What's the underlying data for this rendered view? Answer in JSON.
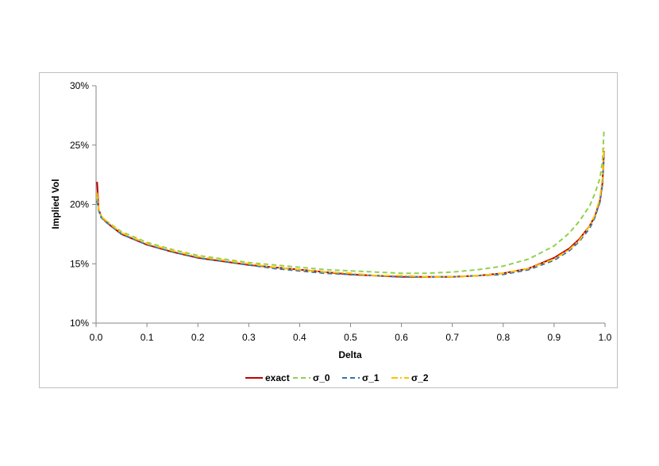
{
  "chart_data": {
    "type": "line",
    "title": "",
    "xlabel": "Delta",
    "ylabel": "Implied Vol",
    "xlim": [
      0.0,
      1.0
    ],
    "ylim": [
      0.1,
      0.3
    ],
    "x_ticks": [
      0.0,
      0.1,
      0.2,
      0.3,
      0.4,
      0.5,
      0.6,
      0.7,
      0.8,
      0.9,
      1.0
    ],
    "x_tick_labels": [
      "0.0",
      "0.1",
      "0.2",
      "0.3",
      "0.4",
      "0.5",
      "0.6",
      "0.7",
      "0.8",
      "0.9",
      "1.0"
    ],
    "y_ticks": [
      0.1,
      0.15,
      0.2,
      0.25,
      0.3
    ],
    "y_tick_labels": [
      "10%",
      "15%",
      "20%",
      "25%",
      "30%"
    ],
    "grid": false,
    "legend_position": "bottom",
    "series": [
      {
        "name": "exact",
        "color": "#c00000",
        "dash": "solid",
        "x": [
          0.002,
          0.005,
          0.01,
          0.02,
          0.05,
          0.1,
          0.15,
          0.2,
          0.25,
          0.3,
          0.35,
          0.4,
          0.45,
          0.5,
          0.55,
          0.6,
          0.65,
          0.7,
          0.75,
          0.8,
          0.85,
          0.9,
          0.93,
          0.95,
          0.97,
          0.98,
          0.99,
          0.995,
          0.998
        ],
        "y": [
          0.219,
          0.196,
          0.19,
          0.185,
          0.175,
          0.166,
          0.16,
          0.155,
          0.152,
          0.149,
          0.147,
          0.145,
          0.143,
          0.141,
          0.14,
          0.139,
          0.139,
          0.139,
          0.14,
          0.142,
          0.146,
          0.155,
          0.163,
          0.171,
          0.182,
          0.19,
          0.203,
          0.218,
          0.245
        ]
      },
      {
        "name": "σ_0",
        "color": "#92d050",
        "dash": "dashed",
        "x": [
          0.002,
          0.005,
          0.01,
          0.02,
          0.05,
          0.1,
          0.15,
          0.2,
          0.25,
          0.3,
          0.35,
          0.4,
          0.45,
          0.5,
          0.55,
          0.6,
          0.65,
          0.7,
          0.75,
          0.8,
          0.85,
          0.9,
          0.93,
          0.95,
          0.97,
          0.98,
          0.99,
          0.995,
          0.998
        ],
        "y": [
          0.205,
          0.195,
          0.19,
          0.186,
          0.177,
          0.168,
          0.162,
          0.157,
          0.154,
          0.151,
          0.149,
          0.147,
          0.145,
          0.144,
          0.143,
          0.142,
          0.142,
          0.143,
          0.145,
          0.148,
          0.154,
          0.165,
          0.176,
          0.186,
          0.199,
          0.209,
          0.222,
          0.237,
          0.262
        ]
      },
      {
        "name": "σ_1",
        "color": "#2e75b6",
        "dash": "dashed",
        "x": [
          0.002,
          0.005,
          0.01,
          0.02,
          0.05,
          0.1,
          0.15,
          0.2,
          0.25,
          0.3,
          0.35,
          0.4,
          0.45,
          0.5,
          0.55,
          0.6,
          0.65,
          0.7,
          0.75,
          0.8,
          0.85,
          0.9,
          0.93,
          0.95,
          0.97,
          0.98,
          0.99,
          0.995,
          0.998
        ],
        "y": [
          0.203,
          0.195,
          0.189,
          0.185,
          0.175,
          0.166,
          0.16,
          0.155,
          0.152,
          0.149,
          0.146,
          0.144,
          0.142,
          0.141,
          0.14,
          0.139,
          0.139,
          0.139,
          0.14,
          0.141,
          0.145,
          0.153,
          0.161,
          0.169,
          0.18,
          0.189,
          0.202,
          0.217,
          0.24
        ]
      },
      {
        "name": "σ_2",
        "color": "#ffc000",
        "dash": "dashdot",
        "x": [
          0.002,
          0.005,
          0.01,
          0.02,
          0.05,
          0.1,
          0.15,
          0.2,
          0.25,
          0.3,
          0.35,
          0.4,
          0.45,
          0.5,
          0.55,
          0.6,
          0.65,
          0.7,
          0.75,
          0.8,
          0.85,
          0.9,
          0.93,
          0.95,
          0.97,
          0.98,
          0.99,
          0.995,
          0.998
        ],
        "y": [
          0.21,
          0.196,
          0.19,
          0.186,
          0.176,
          0.167,
          0.161,
          0.156,
          0.153,
          0.15,
          0.147,
          0.145,
          0.143,
          0.142,
          0.14,
          0.14,
          0.139,
          0.139,
          0.14,
          0.142,
          0.146,
          0.154,
          0.162,
          0.17,
          0.182,
          0.191,
          0.205,
          0.222,
          0.25
        ]
      }
    ]
  }
}
